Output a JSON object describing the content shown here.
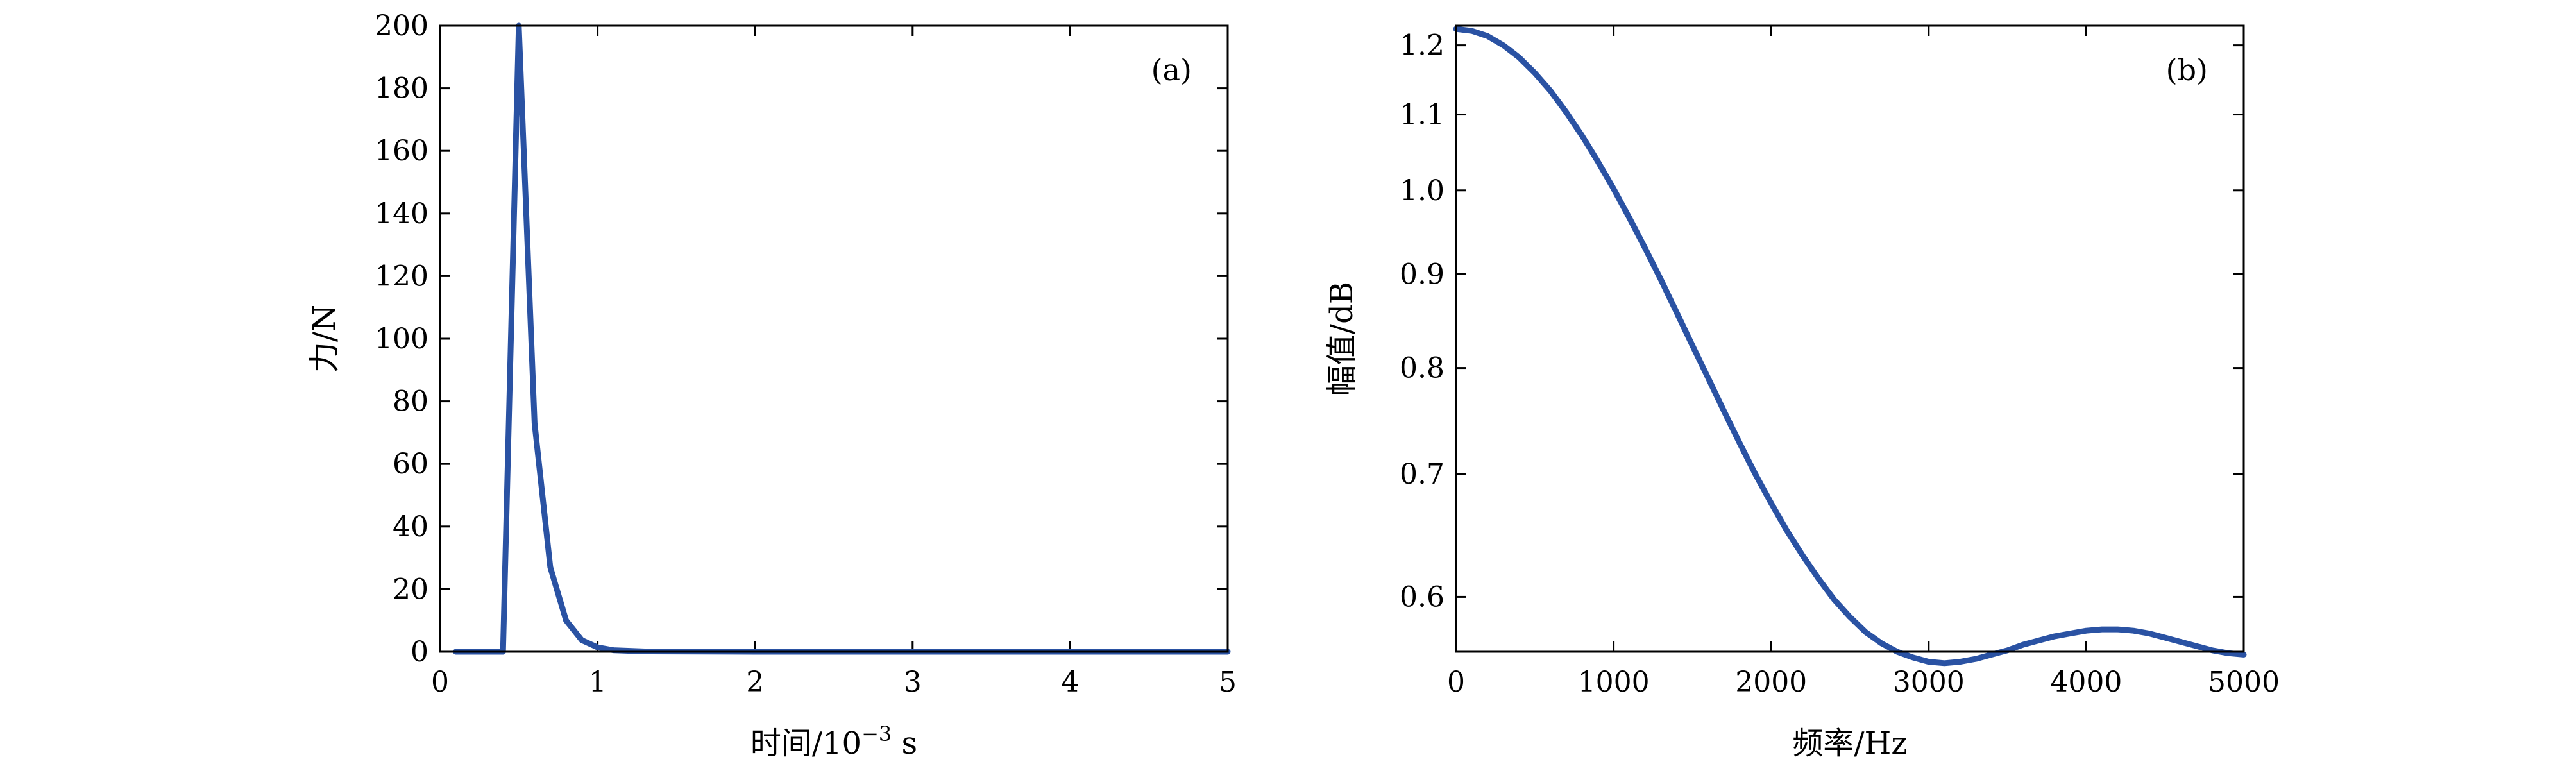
{
  "colors": {
    "series": "#2a52a3",
    "axis": "#000000",
    "background": "#ffffff"
  },
  "chart_data": [
    {
      "panel": "a",
      "panel_label": "(a)",
      "type": "line",
      "title": "",
      "xlabel": "时间/10",
      "xlabel_exp": "−3",
      "xlabel_unit": " s",
      "ylabel": "力/N",
      "xlim": [
        0,
        5
      ],
      "ylim": [
        0,
        200
      ],
      "yscale": "linear",
      "xticks": [
        0,
        1,
        2,
        3,
        4,
        5
      ],
      "yticks": [
        0,
        20,
        40,
        60,
        80,
        100,
        120,
        140,
        160,
        180,
        200
      ],
      "grid": false,
      "series": [
        {
          "x": [
            0.1,
            0.4,
            0.5,
            0.6,
            0.7,
            0.8,
            0.9,
            1.0,
            1.1,
            1.3,
            2.0,
            3.0,
            4.0,
            5.0
          ],
          "y": [
            0,
            0,
            200,
            73,
            27,
            10,
            3.7,
            1.4,
            0.5,
            0.1,
            0,
            0,
            0,
            0
          ]
        }
      ]
    },
    {
      "panel": "b",
      "panel_label": "(b)",
      "type": "line",
      "title": "",
      "xlabel": "频率/Hz",
      "ylabel": "幅值/dB",
      "xlim": [
        0,
        5000
      ],
      "ylim": [
        0.56,
        1.23
      ],
      "yscale": "log",
      "xticks": [
        0,
        1000,
        2000,
        3000,
        4000,
        5000
      ],
      "yticks": [
        0.6,
        0.7,
        0.8,
        0.9,
        1.0,
        1.1,
        1.2
      ],
      "ytick_labels": [
        "0.6",
        "0.7",
        "0.8",
        "0.9",
        "1.0",
        "1.1",
        "1.2"
      ],
      "grid": false,
      "series": [
        {
          "x": [
            0,
            100,
            200,
            300,
            400,
            500,
            600,
            700,
            800,
            900,
            1000,
            1100,
            1200,
            1300,
            1400,
            1500,
            1600,
            1700,
            1800,
            1900,
            2000,
            2100,
            2200,
            2300,
            2400,
            2500,
            2600,
            2700,
            2800,
            2900,
            3000,
            3100,
            3200,
            3300,
            3400,
            3500,
            3600,
            3700,
            3800,
            3900,
            4000,
            4100,
            4200,
            4300,
            4400,
            4500,
            4600,
            4700,
            4800,
            4900,
            5000
          ],
          "y": [
            1.225,
            1.222,
            1.214,
            1.2,
            1.182,
            1.159,
            1.133,
            1.103,
            1.071,
            1.037,
            1.002,
            0.966,
            0.93,
            0.894,
            0.858,
            0.823,
            0.79,
            0.758,
            0.728,
            0.7,
            0.675,
            0.652,
            0.632,
            0.614,
            0.598,
            0.585,
            0.574,
            0.566,
            0.56,
            0.556,
            0.553,
            0.552,
            0.553,
            0.555,
            0.558,
            0.561,
            0.565,
            0.568,
            0.571,
            0.573,
            0.575,
            0.576,
            0.576,
            0.575,
            0.573,
            0.57,
            0.567,
            0.564,
            0.561,
            0.559,
            0.558
          ]
        }
      ]
    }
  ]
}
